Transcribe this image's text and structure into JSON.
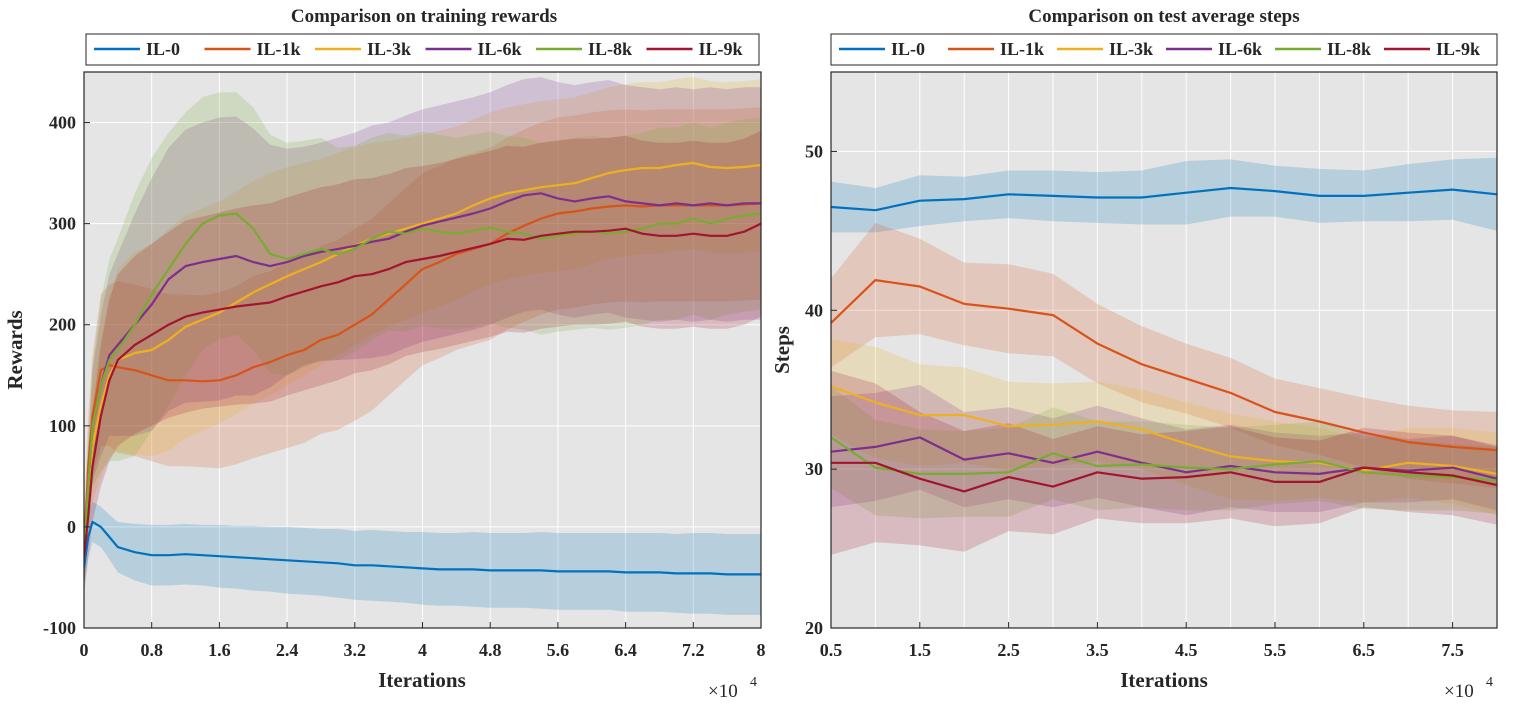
{
  "colors": {
    "IL-0": "#0072BD",
    "IL-1k": "#D95319",
    "IL-3k": "#EDB120",
    "IL-6k": "#7E2F8E",
    "IL-8k": "#77AC30",
    "IL-9k": "#A2142F",
    "axes_background": "#E5E5E5",
    "grid": "#FFFFFF"
  },
  "chart_data": [
    {
      "type": "line",
      "title": "Comparison on training rewards",
      "xlabel": "Iterations",
      "ylabel": "Rewards",
      "x_multiplier_label": "×10",
      "x_multiplier_exponent": "4",
      "x_scale": 10000,
      "xlim": [
        0,
        8
      ],
      "ylim": [
        -100,
        450
      ],
      "xticks": [
        "0",
        "0.8",
        "1.6",
        "2.4",
        "3.2",
        "4",
        "4.8",
        "5.6",
        "6.4",
        "7.2",
        "8"
      ],
      "xtick_values": [
        0,
        0.8,
        1.6,
        2.4,
        3.2,
        4,
        4.8,
        5.6,
        6.4,
        7.2,
        8
      ],
      "yticks": [
        "-100",
        "0",
        "100",
        "200",
        "300",
        "400"
      ],
      "ytick_values": [
        -100,
        0,
        100,
        200,
        300,
        400
      ],
      "grid": true,
      "legend_position": "top",
      "shaded_band": "std",
      "x": [
        0,
        0.05,
        0.1,
        0.2,
        0.3,
        0.4,
        0.6,
        0.8,
        1.0,
        1.2,
        1.4,
        1.6,
        1.8,
        2.0,
        2.2,
        2.4,
        2.6,
        2.8,
        3.0,
        3.2,
        3.4,
        3.6,
        3.8,
        4.0,
        4.2,
        4.4,
        4.6,
        4.8,
        5.0,
        5.2,
        5.4,
        5.6,
        5.8,
        6.0,
        6.2,
        6.4,
        6.6,
        6.8,
        7.0,
        7.2,
        7.4,
        7.6,
        7.8,
        8.0
      ],
      "series": [
        {
          "name": "IL-0",
          "values": [
            -40,
            -10,
            5,
            0,
            -10,
            -20,
            -25,
            -28,
            -28,
            -27,
            -28,
            -29,
            -30,
            -31,
            -32,
            -33,
            -34,
            -35,
            -36,
            -38,
            -38,
            -39,
            -40,
            -41,
            -42,
            -42,
            -42,
            -43,
            -43,
            -43,
            -43,
            -44,
            -44,
            -44,
            -44,
            -45,
            -45,
            -45,
            -46,
            -46,
            -46,
            -47,
            -47,
            -47
          ],
          "std": [
            30,
            22,
            20,
            20,
            22,
            25,
            28,
            30,
            30,
            30,
            30,
            31,
            31,
            32,
            32,
            33,
            33,
            33,
            34,
            34,
            35,
            35,
            35,
            36,
            36,
            36,
            37,
            37,
            37,
            37,
            38,
            38,
            38,
            38,
            38,
            39,
            39,
            39,
            39,
            40,
            40,
            40,
            40,
            40
          ]
        },
        {
          "name": "IL-1k",
          "values": [
            -30,
            60,
            110,
            155,
            160,
            158,
            155,
            150,
            145,
            145,
            144,
            145,
            150,
            158,
            163,
            170,
            175,
            185,
            190,
            200,
            210,
            225,
            240,
            255,
            262,
            270,
            275,
            280,
            290,
            298,
            305,
            310,
            312,
            315,
            317,
            318,
            317,
            318,
            318,
            318,
            318,
            318,
            319,
            320
          ],
          "std": [
            30,
            50,
            60,
            75,
            80,
            85,
            85,
            85,
            85,
            85,
            85,
            87,
            88,
            90,
            90,
            92,
            92,
            93,
            94,
            95,
            95,
            95,
            95,
            95,
            95,
            95,
            95,
            95,
            95,
            95,
            95,
            95,
            95,
            95,
            95,
            95,
            95,
            95,
            95,
            95,
            95,
            95,
            95,
            95
          ]
        },
        {
          "name": "IL-3k",
          "values": [
            -30,
            30,
            80,
            120,
            150,
            165,
            172,
            175,
            185,
            198,
            205,
            212,
            222,
            232,
            240,
            248,
            255,
            262,
            270,
            278,
            285,
            290,
            295,
            300,
            305,
            310,
            318,
            325,
            330,
            333,
            336,
            338,
            340,
            345,
            350,
            353,
            355,
            355,
            358,
            360,
            356,
            355,
            356,
            358
          ],
          "std": [
            30,
            40,
            55,
            70,
            80,
            90,
            100,
            105,
            110,
            110,
            110,
            110,
            110,
            110,
            110,
            108,
            105,
            102,
            100,
            98,
            95,
            92,
            90,
            88,
            87,
            86,
            85,
            85,
            85,
            85,
            85,
            85,
            85,
            85,
            85,
            85,
            85,
            85,
            85,
            85,
            85,
            85,
            85,
            85
          ]
        },
        {
          "name": "IL-6k",
          "values": [
            -30,
            40,
            100,
            140,
            170,
            180,
            200,
            220,
            245,
            258,
            262,
            265,
            268,
            262,
            258,
            262,
            268,
            272,
            275,
            278,
            282,
            285,
            292,
            298,
            302,
            306,
            310,
            315,
            322,
            328,
            330,
            325,
            322,
            325,
            327,
            322,
            320,
            318,
            320,
            318,
            320,
            318,
            320,
            320
          ],
          "std": [
            30,
            40,
            55,
            70,
            80,
            90,
            110,
            125,
            130,
            135,
            138,
            140,
            138,
            132,
            120,
            112,
            108,
            108,
            110,
            112,
            115,
            115,
            115,
            115,
            115,
            115,
            115,
            115,
            115,
            115,
            115,
            115,
            115,
            115,
            115,
            115,
            115,
            115,
            115,
            115,
            115,
            115,
            115,
            115
          ]
        },
        {
          "name": "IL-8k",
          "values": [
            -30,
            40,
            100,
            140,
            165,
            175,
            200,
            230,
            255,
            280,
            300,
            308,
            310,
            295,
            270,
            265,
            270,
            275,
            270,
            275,
            285,
            292,
            290,
            295,
            292,
            290,
            293,
            296,
            292,
            290,
            285,
            288,
            290,
            292,
            290,
            292,
            295,
            300,
            300,
            305,
            300,
            305,
            308,
            310
          ],
          "std": [
            30,
            45,
            60,
            85,
            100,
            110,
            130,
            135,
            135,
            130,
            125,
            122,
            120,
            120,
            118,
            115,
            112,
            110,
            105,
            102,
            100,
            98,
            97,
            96,
            96,
            95,
            95,
            95,
            95,
            95,
            95,
            95,
            95,
            95,
            95,
            95,
            95,
            95,
            95,
            95,
            95,
            95,
            95,
            95
          ]
        },
        {
          "name": "IL-9k",
          "values": [
            -30,
            10,
            60,
            110,
            145,
            165,
            180,
            190,
            200,
            208,
            212,
            215,
            218,
            220,
            222,
            228,
            233,
            238,
            242,
            248,
            250,
            255,
            262,
            265,
            268,
            272,
            276,
            280,
            285,
            284,
            288,
            290,
            292,
            292,
            293,
            295,
            290,
            288,
            288,
            290,
            288,
            288,
            292,
            300
          ],
          "std": [
            30,
            40,
            55,
            70,
            80,
            85,
            88,
            90,
            92,
            95,
            95,
            96,
            97,
            98,
            98,
            98,
            98,
            98,
            97,
            96,
            95,
            94,
            93,
            92,
            92,
            92,
            92,
            92,
            92,
            92,
            92,
            92,
            92,
            92,
            92,
            92,
            92,
            92,
            92,
            92,
            92,
            92,
            92,
            92
          ]
        }
      ]
    },
    {
      "type": "line",
      "title": "Comparison on test average steps",
      "xlabel": "Iterations",
      "ylabel": "Steps",
      "x_multiplier_label": "×10",
      "x_multiplier_exponent": "4",
      "x_scale": 10000,
      "xlim": [
        0.5,
        8
      ],
      "ylim": [
        20,
        55
      ],
      "xticks": [
        "0.5",
        "1.5",
        "2.5",
        "3.5",
        "4.5",
        "5.5",
        "6.5",
        "7.5"
      ],
      "xtick_values": [
        0.5,
        1.5,
        2.5,
        3.5,
        4.5,
        5.5,
        6.5,
        7.5
      ],
      "xgrid_values": [
        0.5,
        1,
        1.5,
        2,
        2.5,
        3,
        3.5,
        4,
        4.5,
        5,
        5.5,
        6,
        6.5,
        7,
        7.5,
        8
      ],
      "yticks": [
        "20",
        "30",
        "40",
        "50"
      ],
      "ytick_values": [
        20,
        30,
        40,
        50
      ],
      "grid": true,
      "legend_position": "top",
      "shaded_band": "std",
      "x": [
        0.5,
        1.0,
        1.5,
        2.0,
        2.5,
        3.0,
        3.5,
        4.0,
        4.5,
        5.0,
        5.5,
        6.0,
        6.5,
        7.0,
        7.5,
        8.0
      ],
      "series": [
        {
          "name": "IL-0",
          "values": [
            46.5,
            46.3,
            46.9,
            47.0,
            47.3,
            47.2,
            47.1,
            47.1,
            47.4,
            47.7,
            47.5,
            47.2,
            47.2,
            47.4,
            47.6,
            47.3
          ],
          "std": [
            1.6,
            1.4,
            1.6,
            1.4,
            1.5,
            1.6,
            1.6,
            1.7,
            2.0,
            1.8,
            1.6,
            1.7,
            1.6,
            1.8,
            1.9,
            2.3
          ]
        },
        {
          "name": "IL-1k",
          "values": [
            39.2,
            41.9,
            41.5,
            40.4,
            40.1,
            39.7,
            37.9,
            36.6,
            35.7,
            34.8,
            33.6,
            33.0,
            32.3,
            31.7,
            31.4,
            31.2
          ],
          "std": [
            2.8,
            3.6,
            3.0,
            2.6,
            2.8,
            2.6,
            2.5,
            2.4,
            2.2,
            2.2,
            2.1,
            2.1,
            2.2,
            2.3,
            2.3,
            2.4
          ]
        },
        {
          "name": "IL-3k",
          "values": [
            35.2,
            34.2,
            33.4,
            33.4,
            32.7,
            32.8,
            33.0,
            32.5,
            31.6,
            30.8,
            30.5,
            30.4,
            29.9,
            30.4,
            30.2,
            29.7
          ],
          "std": [
            3.0,
            3.5,
            3.2,
            3.0,
            2.8,
            2.6,
            2.5,
            2.5,
            2.6,
            2.7,
            2.5,
            2.2,
            2.0,
            2.2,
            2.4,
            2.6
          ]
        },
        {
          "name": "IL-6k",
          "values": [
            31.1,
            31.4,
            32.0,
            30.6,
            31.0,
            30.4,
            31.1,
            30.4,
            29.8,
            30.2,
            29.8,
            29.7,
            30.1,
            29.9,
            30.1,
            29.4
          ],
          "std": [
            3.5,
            3.4,
            3.3,
            3.0,
            2.9,
            2.8,
            2.9,
            2.8,
            2.7,
            2.6,
            2.5,
            2.4,
            2.2,
            2.0,
            2.0,
            2.0
          ]
        },
        {
          "name": "IL-8k",
          "values": [
            32.0,
            30.1,
            29.7,
            29.7,
            29.8,
            31.0,
            30.2,
            30.3,
            30.1,
            30.0,
            30.3,
            30.5,
            29.8,
            29.6,
            29.5,
            29.3
          ],
          "std": [
            3.2,
            3.0,
            2.8,
            2.7,
            2.8,
            2.9,
            2.8,
            2.7,
            2.7,
            2.6,
            2.5,
            2.5,
            2.3,
            2.2,
            2.1,
            2.1
          ]
        },
        {
          "name": "IL-9k",
          "values": [
            30.4,
            30.4,
            29.4,
            28.6,
            29.5,
            28.9,
            29.8,
            29.4,
            29.5,
            29.8,
            29.2,
            29.2,
            30.1,
            29.8,
            29.6,
            29.0
          ],
          "std": [
            5.8,
            5.0,
            4.2,
            3.8,
            3.4,
            3.0,
            2.9,
            2.8,
            2.9,
            2.9,
            2.8,
            2.6,
            2.5,
            2.5,
            2.5,
            2.5
          ]
        }
      ]
    }
  ]
}
